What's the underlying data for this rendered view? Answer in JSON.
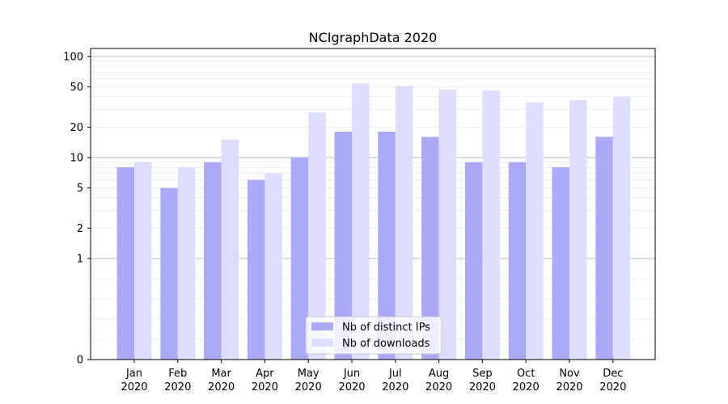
{
  "chart_data": {
    "type": "bar",
    "title": "NCIgraphData 2020",
    "xlabel": "",
    "ylabel": "",
    "y_scale": "symlog",
    "ylim": [
      0,
      120
    ],
    "y_ticks": [
      0,
      1,
      2,
      5,
      10,
      20,
      50,
      100
    ],
    "y_tick_labels": [
      "0",
      "1",
      "2",
      "5",
      "10",
      "20",
      "50",
      "100"
    ],
    "categories": [
      [
        "Jan",
        "2020"
      ],
      [
        "Feb",
        "2020"
      ],
      [
        "Mar",
        "2020"
      ],
      [
        "Apr",
        "2020"
      ],
      [
        "May",
        "2020"
      ],
      [
        "Jun",
        "2020"
      ],
      [
        "Jul",
        "2020"
      ],
      [
        "Aug",
        "2020"
      ],
      [
        "Sep",
        "2020"
      ],
      [
        "Oct",
        "2020"
      ],
      [
        "Nov",
        "2020"
      ],
      [
        "Dec",
        "2020"
      ]
    ],
    "series": [
      {
        "name": "Nb of distinct IPs",
        "color": "#aaaaf8",
        "values": [
          8,
          5,
          9,
          6,
          10,
          18,
          18,
          16,
          9,
          9,
          8,
          16
        ]
      },
      {
        "name": "Nb of downloads",
        "color": "#ddddff",
        "values": [
          9,
          8,
          15,
          7,
          28,
          54,
          51,
          47,
          46,
          35,
          37,
          40
        ]
      }
    ],
    "grid": true,
    "legend_position": "bottom-center"
  }
}
